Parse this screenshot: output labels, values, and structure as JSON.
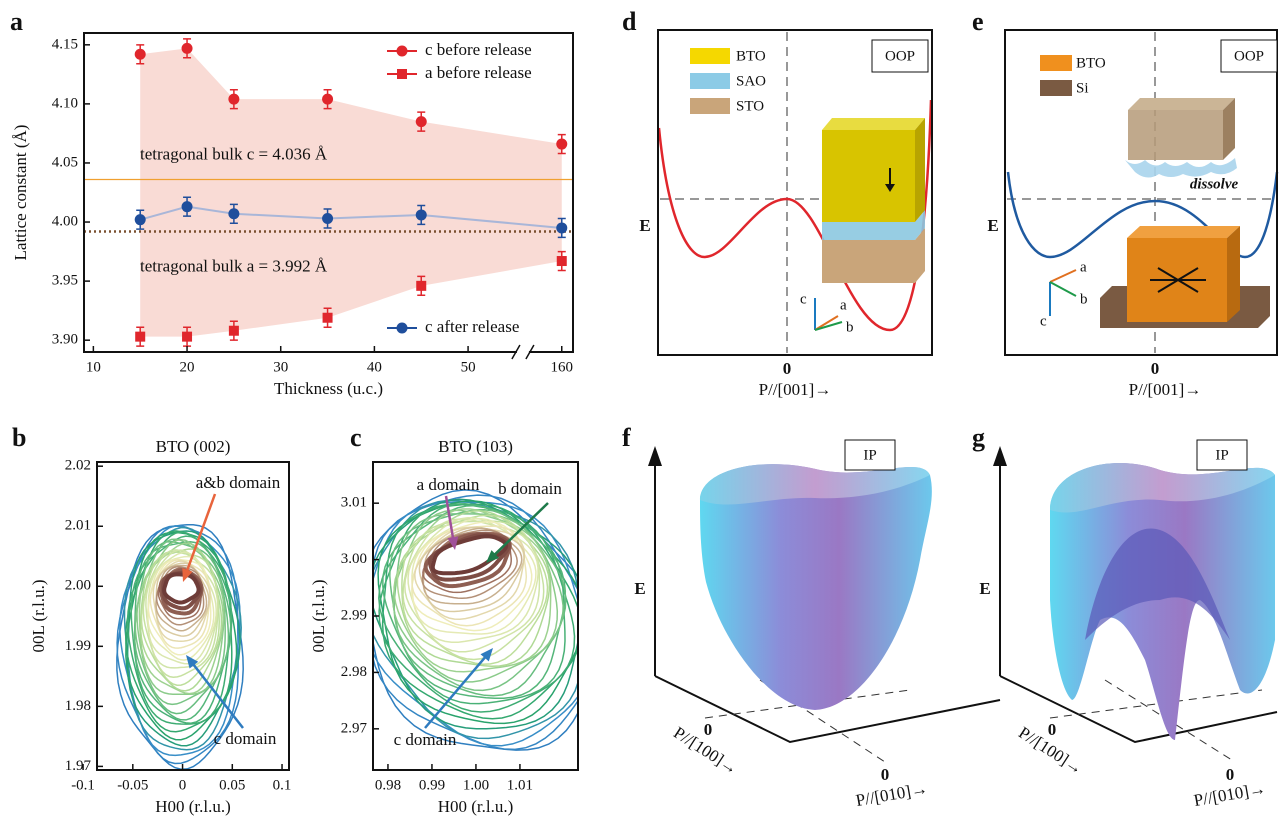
{
  "chart_data": [
    {
      "type": "scatter",
      "panel": "a",
      "xlabel": "Thickness (u.c.)",
      "ylabel": "Lattice constant (Å)",
      "x": [
        15,
        20,
        25,
        35,
        45,
        160
      ],
      "series": [
        {
          "name": "c before release",
          "color": "#e0262c",
          "marker": "circle",
          "values": [
            4.142,
            4.147,
            4.104,
            4.104,
            4.085,
            4.066
          ],
          "errors": [
            0.008,
            0.008,
            0.008,
            0.008,
            0.008,
            0.008
          ]
        },
        {
          "name": "a before release",
          "color": "#e0262c",
          "marker": "square",
          "values": [
            3.903,
            3.903,
            3.908,
            3.919,
            3.946,
            3.967
          ],
          "errors": [
            0.008,
            0.008,
            0.008,
            0.008,
            0.008,
            0.008
          ]
        },
        {
          "name": "c after release",
          "color": "#1f4e9c",
          "marker": "circle",
          "line_color": "#a9b6d8",
          "legend": "lower right",
          "values": [
            4.002,
            4.013,
            4.007,
            4.003,
            4.006,
            3.995
          ],
          "errors": [
            0.008,
            0.008,
            0.008,
            0.008,
            0.008,
            0.008
          ]
        }
      ],
      "band_color": "#f9dbd5",
      "legend": "upper right",
      "reference_lines": [
        {
          "value": 4.036,
          "label": "tetragonal bulk c = 4.036 Å",
          "color": "#f0a030",
          "style": "solid"
        },
        {
          "value": 3.992,
          "label": "tetragonal bulk a = 3.992 Å",
          "color": "#7a5030",
          "style": "dotted"
        }
      ],
      "xlim": [
        9,
        161.2
      ],
      "xticks": [
        10,
        20,
        30,
        40,
        50,
        160
      ],
      "axis_break": true,
      "ylim": [
        3.89,
        4.16
      ],
      "yticks": [
        {
          "value": 3.9,
          "label": "3.90"
        },
        3.95,
        {
          "value": 4,
          "label": "4.00"
        },
        4.05,
        {
          "value": 4.1,
          "label": "4.10"
        },
        4.15
      ]
    },
    {
      "type": "contour",
      "panel": "b",
      "title": "BTO (002)",
      "xlabel": "H00 (r.l.u.)",
      "ylabel": "00L (r.l.u.)",
      "xlim": [
        -0.086,
        0.107
      ],
      "xticks": [
        -0.1,
        -0.05,
        0,
        0.05,
        0.1
      ],
      "ylim": [
        1.9694,
        2.0207
      ],
      "yticks": [
        1.97,
        1.98,
        1.99,
        {
          "value": 2,
          "label": "2.00"
        },
        2.01,
        2.02
      ],
      "annotations": [
        {
          "text": "a&b domain",
          "color": "#e8643c"
        },
        {
          "text": "c domain",
          "color": "#2e7bbf"
        }
      ]
    },
    {
      "type": "contour",
      "panel": "c",
      "title": "BTO (103)",
      "xlabel": "H00 (r.l.u.)",
      "ylabel": "00L (r.l.u.)",
      "xlim": [
        0.9766,
        1.0232
      ],
      "xticks": [
        0.98,
        0.99,
        {
          "value": 1,
          "label": "1.00"
        },
        1.01
      ],
      "ylim": [
        2.9627,
        3.0173
      ],
      "yticks": [
        2.97,
        2.98,
        2.99,
        {
          "value": 3,
          "label": "3.00"
        },
        3.01
      ],
      "annotations": [
        {
          "text": "a domain",
          "color": "#a0509a"
        },
        {
          "text": "b domain",
          "color": "#1e7a4a"
        },
        {
          "text": "c domain",
          "color": "#2e7bbf"
        }
      ]
    }
  ],
  "diagrams": [
    {
      "panel": "d",
      "frame_label": "OOP",
      "energy_label": "E",
      "axis1_zero": "0",
      "axis1_label": "P//[001]→",
      "legend": [
        {
          "name": "BTO",
          "color": "#f5d800"
        },
        {
          "name": "SAO",
          "color": "#8ccbe6"
        },
        {
          "name": "STO",
          "color": "#c9a57a"
        }
      ],
      "axes": [
        "c",
        "a",
        "b"
      ]
    },
    {
      "panel": "e",
      "frame_label": "OOP",
      "energy_label": "E",
      "axis1_zero": "0",
      "axis1_label": "P//[001]→",
      "legend": [
        {
          "name": "BTO",
          "color": "#f0901e"
        },
        {
          "name": "Si",
          "color": "#7a5a42"
        }
      ],
      "note": "dissolve",
      "axes": [
        "c",
        "a",
        "b"
      ]
    },
    {
      "panel": "f",
      "frame_label": "IP",
      "energy_label": "E",
      "axis1_zero": "0",
      "axis1_label": "P//[100]→",
      "axis2_zero": "0",
      "axis2_label": "P//[010]→"
    },
    {
      "panel": "g",
      "frame_label": "IP",
      "energy_label": "E",
      "axis1_zero": "0",
      "axis1_label": "P//[100]→",
      "axis2_zero": "0",
      "axis2_label": "P//[010]→"
    }
  ]
}
